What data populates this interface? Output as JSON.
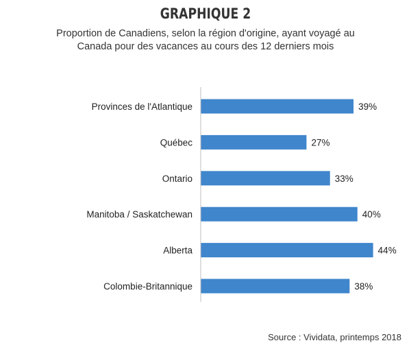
{
  "heading": "GRAPHIQUE 2",
  "subtitle_line1": "Proportion de Canadiens, selon la région d'origine, ayant voyagé au",
  "subtitle_line2": "Canada pour des vacances au cours des 12 derniers mois",
  "source": "Source : Vividata, printemps 2018",
  "colors": {
    "bar": "#3f86cc",
    "axis": "#bfbfbf",
    "text": "#222222"
  },
  "chart_data": {
    "type": "bar",
    "orientation": "horizontal",
    "title": "GRAPHIQUE 2",
    "subtitle": "Proportion de Canadiens, selon la région d'origine, ayant voyagé au Canada pour des vacances au cours des 12 derniers mois",
    "categories": [
      "Provinces de l'Atlantique",
      "Québec",
      "Ontario",
      "Manitoba / Saskatchewan",
      "Alberta",
      "Colombie-Britannique"
    ],
    "values": [
      39,
      27,
      33,
      40,
      44,
      38
    ],
    "data_labels": [
      "39%",
      "27%",
      "33%",
      "40%",
      "44%",
      "38%"
    ],
    "unit": "%",
    "xlabel": "",
    "ylabel": "",
    "xlim": [
      0,
      50
    ],
    "grid": false,
    "legend": "none"
  }
}
